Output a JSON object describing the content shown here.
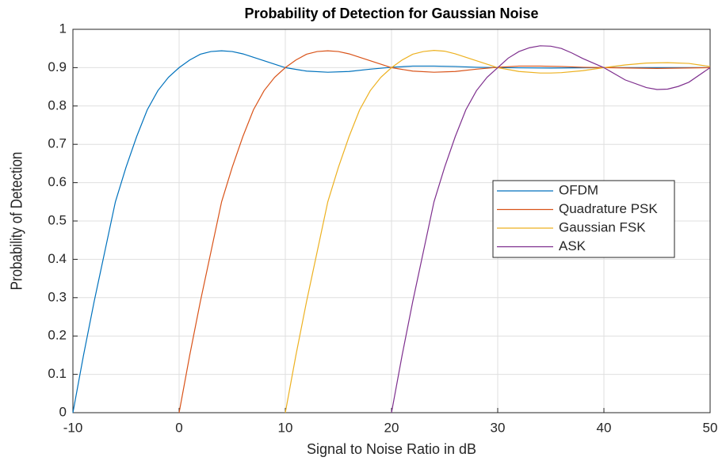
{
  "chart_data": {
    "type": "line",
    "title": "Probability of Detection for Gaussian Noise",
    "xlabel": "Signal to Noise Ratio in dB",
    "ylabel": "Probability of Detection",
    "xlim": [
      -10,
      50
    ],
    "xticks": [
      -10,
      0,
      10,
      20,
      30,
      40,
      50
    ],
    "ylim": [
      0,
      1
    ],
    "yticks": [
      0,
      0.1,
      0.2,
      0.3,
      0.4,
      0.5,
      0.6,
      0.7,
      0.8,
      0.9,
      1
    ],
    "grid": true,
    "legend": "right",
    "series": [
      {
        "name": "OFDM",
        "color": "#0072BD",
        "x": [
          -10,
          -9,
          -8,
          -7,
          -6,
          -5,
          -4,
          -3,
          -2,
          -1,
          0,
          1,
          2,
          3,
          4,
          5,
          6,
          8,
          10,
          12,
          14,
          16,
          18,
          20,
          22,
          24,
          26,
          28,
          30,
          35,
          40,
          45,
          50
        ],
        "values": [
          0,
          0.15,
          0.29,
          0.42,
          0.55,
          0.64,
          0.72,
          0.79,
          0.84,
          0.875,
          0.9,
          0.92,
          0.935,
          0.942,
          0.944,
          0.942,
          0.936,
          0.918,
          0.9,
          0.891,
          0.888,
          0.89,
          0.896,
          0.901,
          0.904,
          0.904,
          0.903,
          0.901,
          0.9,
          0.899,
          0.9,
          0.9,
          0.9
        ]
      },
      {
        "name": "Quadrature PSK",
        "color": "#D95319",
        "x": [
          0,
          1,
          2,
          3,
          4,
          5,
          6,
          7,
          8,
          9,
          10,
          11,
          12,
          13,
          14,
          15,
          16,
          18,
          20,
          22,
          24,
          26,
          28,
          30,
          32,
          34,
          36,
          38,
          40,
          45,
          50
        ],
        "values": [
          0,
          0.15,
          0.29,
          0.42,
          0.55,
          0.64,
          0.72,
          0.79,
          0.84,
          0.875,
          0.9,
          0.92,
          0.935,
          0.942,
          0.944,
          0.942,
          0.936,
          0.918,
          0.9,
          0.891,
          0.888,
          0.89,
          0.896,
          0.901,
          0.904,
          0.904,
          0.903,
          0.901,
          0.9,
          0.898,
          0.9
        ]
      },
      {
        "name": "Gaussian FSK",
        "color": "#EDB120",
        "x": [
          10,
          11,
          12,
          13,
          14,
          15,
          16,
          17,
          18,
          19,
          20,
          21,
          22,
          23,
          24,
          25,
          26,
          28,
          30,
          32,
          34,
          35,
          36,
          38,
          40,
          42,
          44,
          46,
          48,
          50
        ],
        "values": [
          0,
          0.15,
          0.29,
          0.42,
          0.55,
          0.64,
          0.72,
          0.79,
          0.84,
          0.875,
          0.9,
          0.92,
          0.935,
          0.942,
          0.945,
          0.943,
          0.936,
          0.918,
          0.9,
          0.89,
          0.886,
          0.886,
          0.887,
          0.892,
          0.9,
          0.907,
          0.912,
          0.913,
          0.911,
          0.903
        ]
      },
      {
        "name": "ASK",
        "color": "#7E2F8E",
        "x": [
          20,
          21,
          22,
          23,
          24,
          25,
          26,
          27,
          28,
          29,
          30,
          31,
          32,
          33,
          34,
          35,
          36,
          37,
          38,
          40,
          42,
          44,
          45,
          46,
          47,
          48,
          50
        ],
        "values": [
          0,
          0.15,
          0.29,
          0.42,
          0.55,
          0.64,
          0.72,
          0.79,
          0.84,
          0.875,
          0.9,
          0.925,
          0.942,
          0.952,
          0.957,
          0.956,
          0.95,
          0.938,
          0.924,
          0.9,
          0.868,
          0.848,
          0.843,
          0.844,
          0.851,
          0.862,
          0.9
        ]
      }
    ]
  }
}
